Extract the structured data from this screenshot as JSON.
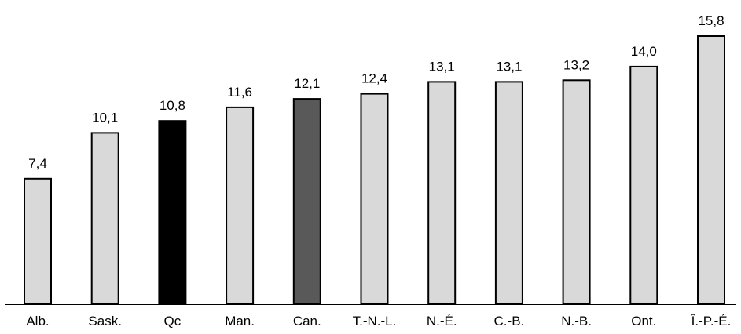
{
  "chart_data": {
    "type": "bar",
    "categories": [
      "Alb.",
      "Sask.",
      "Qc",
      "Man.",
      "Can.",
      "T.-N.-L.",
      "N.-É.",
      "C.-B.",
      "N.-B.",
      "Ont.",
      "Î.-P.-É."
    ],
    "values": [
      7.4,
      10.1,
      10.8,
      11.6,
      12.1,
      12.4,
      13.1,
      13.1,
      13.2,
      14.0,
      15.8
    ],
    "value_labels": [
      "7,4",
      "10,1",
      "10,8",
      "11,6",
      "12,1",
      "12,4",
      "13,1",
      "13,1",
      "13,2",
      "14,0",
      "15,8"
    ],
    "ylim": [
      0,
      17
    ],
    "grid": false,
    "legend": "none",
    "colors": {
      "default": "#d9d9d9",
      "Qc": "#000000",
      "Can.": "#595959",
      "outline": "#000000"
    }
  }
}
